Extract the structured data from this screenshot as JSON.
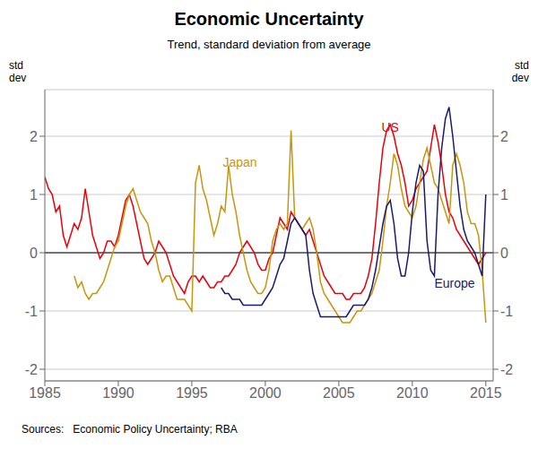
{
  "chart_data": {
    "type": "line",
    "title": "Economic Uncertainty",
    "subtitle": "Trend, standard deviation from average",
    "source": "Sources:   Economic Policy Uncertainty; RBA",
    "ylabel": "std\ndev",
    "y2label": "std\ndev",
    "xlim": [
      1985,
      2015.5
    ],
    "xticks": [
      1985,
      1990,
      1995,
      2000,
      2005,
      2010,
      2015
    ],
    "ylim": [
      -2.2,
      2.8
    ],
    "yticks": [
      -2,
      -1,
      0,
      1,
      2
    ],
    "y2lim": [
      -2.2,
      2.8
    ],
    "y2ticks": [
      -2,
      -1,
      0,
      1,
      2
    ],
    "grid": "y",
    "hlines": [
      0
    ],
    "series": [
      {
        "name": "US",
        "color": "#e8000a",
        "x": [
          1985.0,
          1985.25,
          1985.5,
          1985.75,
          1986.0,
          1986.25,
          1986.5,
          1986.75,
          1987.0,
          1987.25,
          1987.5,
          1987.75,
          1988.0,
          1988.25,
          1988.5,
          1988.75,
          1989.0,
          1989.25,
          1989.5,
          1989.75,
          1990.0,
          1990.25,
          1990.5,
          1990.75,
          1991.0,
          1991.25,
          1991.5,
          1991.75,
          1992.0,
          1992.25,
          1992.5,
          1992.75,
          1993.0,
          1993.25,
          1993.5,
          1993.75,
          1994.0,
          1994.25,
          1994.5,
          1994.75,
          1995.0,
          1995.25,
          1995.5,
          1995.75,
          1996.0,
          1996.25,
          1996.5,
          1996.75,
          1997.0,
          1997.25,
          1997.5,
          1997.75,
          1998.0,
          1998.25,
          1998.5,
          1998.75,
          1999.0,
          1999.25,
          1999.5,
          1999.75,
          2000.0,
          2000.25,
          2000.5,
          2000.75,
          2001.0,
          2001.25,
          2001.5,
          2001.75,
          2002.0,
          2002.25,
          2002.5,
          2002.75,
          2003.0,
          2003.25,
          2003.5,
          2003.75,
          2004.0,
          2004.25,
          2004.5,
          2004.75,
          2005.0,
          2005.25,
          2005.5,
          2005.75,
          2006.0,
          2006.25,
          2006.5,
          2006.75,
          2007.0,
          2007.25,
          2007.5,
          2007.75,
          2008.0,
          2008.25,
          2008.5,
          2008.75,
          2009.0,
          2009.25,
          2009.5,
          2009.75,
          2010.0,
          2010.25,
          2010.5,
          2010.75,
          2011.0,
          2011.25,
          2011.5,
          2011.75,
          2012.0,
          2012.25,
          2012.5,
          2012.75,
          2013.0,
          2013.25,
          2013.5,
          2013.75,
          2014.0,
          2014.25,
          2014.5,
          2014.75,
          2015.0
        ],
        "values": [
          1.3,
          1.1,
          1.0,
          0.7,
          0.8,
          0.3,
          0.1,
          0.3,
          0.5,
          0.4,
          0.6,
          1.1,
          0.7,
          0.3,
          0.1,
          -0.1,
          0.0,
          0.2,
          0.2,
          0.1,
          0.3,
          0.6,
          0.9,
          1.0,
          0.8,
          0.5,
          0.2,
          -0.1,
          -0.2,
          -0.1,
          0.0,
          0.2,
          0.1,
          0.0,
          -0.2,
          -0.4,
          -0.5,
          -0.6,
          -0.7,
          -0.5,
          -0.4,
          -0.4,
          -0.5,
          -0.4,
          -0.5,
          -0.6,
          -0.6,
          -0.5,
          -0.5,
          -0.4,
          -0.4,
          -0.3,
          -0.2,
          0.0,
          0.1,
          0.2,
          0.1,
          0.0,
          -0.2,
          -0.3,
          -0.3,
          -0.1,
          0.0,
          0.3,
          0.6,
          0.5,
          0.4,
          0.7,
          0.6,
          0.5,
          0.4,
          0.3,
          0.4,
          0.2,
          0.0,
          -0.2,
          -0.4,
          -0.5,
          -0.6,
          -0.7,
          -0.7,
          -0.7,
          -0.8,
          -0.8,
          -0.7,
          -0.7,
          -0.7,
          -0.6,
          -0.4,
          -0.1,
          0.5,
          1.2,
          1.8,
          2.1,
          2.2,
          2.0,
          1.7,
          1.5,
          1.2,
          0.8,
          0.9,
          1.1,
          1.2,
          1.3,
          1.4,
          1.8,
          2.2,
          1.9,
          1.5,
          1.0,
          0.7,
          0.6,
          0.4,
          0.3,
          0.2,
          0.1,
          0.0,
          -0.1,
          -0.2,
          -0.1,
          0.0
        ]
      },
      {
        "name": "Japan",
        "color": "#c8960c",
        "x": [
          1987.0,
          1987.25,
          1987.5,
          1987.75,
          1988.0,
          1988.25,
          1988.5,
          1988.75,
          1989.0,
          1989.25,
          1989.5,
          1989.75,
          1990.0,
          1990.25,
          1990.5,
          1990.75,
          1991.0,
          1991.25,
          1991.5,
          1991.75,
          1992.0,
          1992.25,
          1992.5,
          1992.75,
          1993.0,
          1993.25,
          1993.5,
          1993.75,
          1994.0,
          1994.25,
          1994.5,
          1994.75,
          1995.0,
          1995.25,
          1995.5,
          1995.75,
          1996.0,
          1996.25,
          1996.5,
          1996.75,
          1997.0,
          1997.25,
          1997.5,
          1997.75,
          1998.0,
          1998.25,
          1998.5,
          1998.75,
          1999.0,
          1999.25,
          1999.5,
          1999.75,
          2000.0,
          2000.25,
          2000.5,
          2000.75,
          2001.0,
          2001.25,
          2001.5,
          2001.75,
          2002.0,
          2002.25,
          2002.5,
          2002.75,
          2003.0,
          2003.25,
          2003.5,
          2003.75,
          2004.0,
          2004.25,
          2004.5,
          2004.75,
          2005.0,
          2005.25,
          2005.5,
          2005.75,
          2006.0,
          2006.25,
          2006.5,
          2006.75,
          2007.0,
          2007.25,
          2007.5,
          2007.75,
          2008.0,
          2008.25,
          2008.5,
          2008.75,
          2009.0,
          2009.25,
          2009.5,
          2009.75,
          2010.0,
          2010.25,
          2010.5,
          2010.75,
          2011.0,
          2011.25,
          2011.5,
          2011.75,
          2012.0,
          2012.25,
          2012.5,
          2012.75,
          2013.0,
          2013.25,
          2013.5,
          2013.75,
          2014.0,
          2014.25,
          2014.5,
          2014.75,
          2015.0
        ],
        "values": [
          -0.4,
          -0.6,
          -0.5,
          -0.7,
          -0.8,
          -0.7,
          -0.7,
          -0.6,
          -0.5,
          -0.3,
          -0.1,
          0.1,
          0.2,
          0.5,
          0.8,
          1.0,
          1.1,
          0.9,
          0.7,
          0.6,
          0.5,
          0.2,
          0.0,
          -0.3,
          -0.5,
          -0.4,
          -0.4,
          -0.6,
          -0.8,
          -0.8,
          -0.8,
          -0.9,
          -1.0,
          1.2,
          1.5,
          1.1,
          0.9,
          0.6,
          0.3,
          0.5,
          0.8,
          0.7,
          1.5,
          1.0,
          0.7,
          0.3,
          0.0,
          -0.3,
          -0.5,
          -0.6,
          -0.7,
          -0.7,
          -0.6,
          -0.3,
          0.2,
          0.4,
          0.5,
          0.4,
          0.5,
          2.1,
          0.6,
          0.5,
          0.4,
          0.5,
          0.6,
          0.4,
          0.0,
          -0.5,
          -0.7,
          -0.8,
          -0.9,
          -1.0,
          -1.1,
          -1.2,
          -1.2,
          -1.2,
          -1.1,
          -1.0,
          -1.0,
          -0.9,
          -0.8,
          -0.7,
          -0.5,
          -0.3,
          0.2,
          0.8,
          1.2,
          1.7,
          1.5,
          1.1,
          0.8,
          0.7,
          0.6,
          0.8,
          1.2,
          1.6,
          1.8,
          1.5,
          1.2,
          1.1,
          0.9,
          0.7,
          0.5,
          1.5,
          1.7,
          1.5,
          1.2,
          0.7,
          0.5,
          0.5,
          0.3,
          -0.3,
          -1.2
        ]
      },
      {
        "name": "Europe",
        "color": "#1a1a6e",
        "x": [
          1997.0,
          1997.25,
          1997.5,
          1997.75,
          1998.0,
          1998.25,
          1998.5,
          1998.75,
          1999.0,
          1999.25,
          1999.5,
          1999.75,
          2000.0,
          2000.25,
          2000.5,
          2000.75,
          2001.0,
          2001.25,
          2001.5,
          2001.75,
          2002.0,
          2002.25,
          2002.5,
          2002.75,
          2003.0,
          2003.25,
          2003.5,
          2003.75,
          2004.0,
          2004.25,
          2004.5,
          2004.75,
          2005.0,
          2005.25,
          2005.5,
          2005.75,
          2006.0,
          2006.25,
          2006.5,
          2006.75,
          2007.0,
          2007.25,
          2007.5,
          2007.75,
          2008.0,
          2008.25,
          2008.5,
          2008.75,
          2009.0,
          2009.25,
          2009.5,
          2009.75,
          2010.0,
          2010.25,
          2010.5,
          2010.75,
          2011.0,
          2011.25,
          2011.5,
          2011.75,
          2012.0,
          2012.25,
          2012.5,
          2012.75,
          2013.0,
          2013.25,
          2013.5,
          2013.75,
          2014.0,
          2014.25,
          2014.5,
          2014.75,
          2015.0
        ],
        "values": [
          -0.6,
          -0.7,
          -0.7,
          -0.8,
          -0.8,
          -0.8,
          -0.9,
          -0.9,
          -0.9,
          -0.9,
          -0.9,
          -0.9,
          -0.8,
          -0.7,
          -0.6,
          -0.4,
          -0.2,
          -0.1,
          0.2,
          0.5,
          0.6,
          0.5,
          0.4,
          0.3,
          -0.3,
          -0.7,
          -0.9,
          -1.1,
          -1.1,
          -1.1,
          -1.1,
          -1.1,
          -1.1,
          -1.1,
          -1.1,
          -1.0,
          -0.9,
          -0.9,
          -0.9,
          -0.9,
          -0.8,
          -0.6,
          -0.3,
          0.1,
          0.5,
          0.8,
          0.9,
          0.5,
          -0.1,
          -0.4,
          -0.4,
          0.0,
          0.7,
          1.2,
          1.5,
          1.4,
          0.2,
          -0.3,
          -0.4,
          1.0,
          1.8,
          2.3,
          2.5,
          2.0,
          1.4,
          0.8,
          0.4,
          0.2,
          0.1,
          0.0,
          -0.2,
          -0.4,
          1.0
        ]
      }
    ],
    "annotations": [
      {
        "text": "Japan",
        "x": 1996.8,
        "y": 1.55,
        "color": "#c8960c"
      },
      {
        "text": "US",
        "x": 2007.6,
        "y": 2.15,
        "color": "#e8000a"
      },
      {
        "text": "Europe",
        "x": 2011.2,
        "y": -0.52,
        "color": "#1a1a6e"
      }
    ]
  }
}
